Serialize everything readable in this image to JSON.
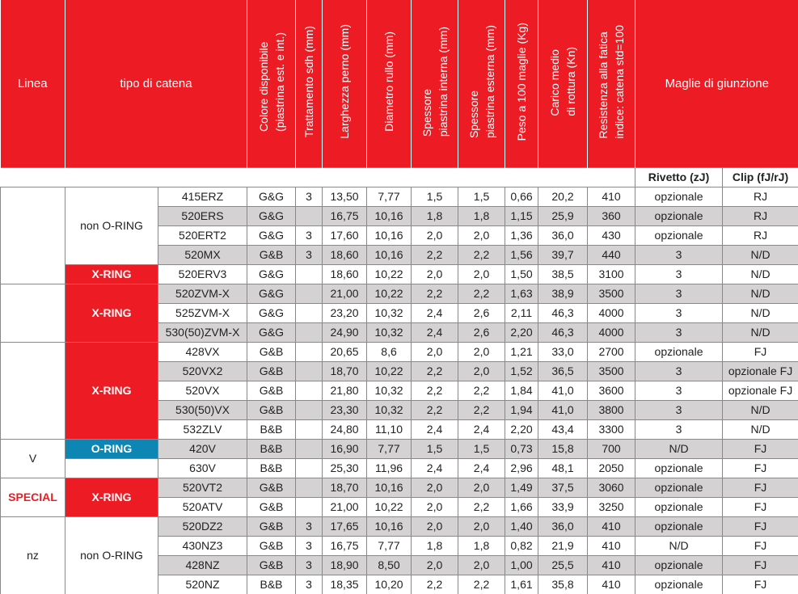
{
  "table": {
    "headers": [
      "Linea",
      "tipo di catena",
      "Colore disponibile\n(piastrina est. e int.)",
      "Trattamento sdh (mm)",
      "Larghezza perno (mm)",
      "Diametro rullo (mm)",
      "Spessore\npiastrina interna (mm)",
      "Spessore\npiastrina esterna (mm)",
      "Peso a 100 maglie (Kg)",
      "Carico medio\ndi rottura (Kn)",
      "Resistenza alla fatica\nindice: catena std=100",
      "Maglie di giunzione"
    ],
    "subheaders": [
      "Rivetto (zJ)",
      "Clip (fJ/rJ)"
    ],
    "linea_groups": [
      null,
      null,
      null,
      "V",
      "SPECIAL",
      "nz"
    ],
    "type_groups": [
      "non O-RING",
      "X-RING",
      "X-RING",
      "X-RING",
      "O-RING",
      null,
      "X-RING",
      "non O-RING"
    ],
    "rows": [
      [
        "415ERZ",
        "G&G",
        "3",
        "13,50",
        "7,77",
        "1,5",
        "1,5",
        "0,66",
        "20,2",
        "410",
        "opzionale",
        "RJ"
      ],
      [
        "520ERS",
        "G&G",
        null,
        "16,75",
        "10,16",
        "1,8",
        "1,8",
        "1,15",
        "25,9",
        "360",
        "opzionale",
        "RJ"
      ],
      [
        "520ERT2",
        "G&G",
        "3",
        "17,60",
        "10,16",
        "2,0",
        "2,0",
        "1,36",
        "36,0",
        "430",
        "opzionale",
        "RJ"
      ],
      [
        "520MX",
        "G&B",
        "3",
        "18,60",
        "10,16",
        "2,2",
        "2,2",
        "1,56",
        "39,7",
        "440",
        "3",
        "N/D"
      ],
      [
        "520ERV3",
        "G&G",
        null,
        "18,60",
        "10,22",
        "2,0",
        "2,0",
        "1,50",
        "38,5",
        "3100",
        "3",
        "N/D"
      ],
      [
        "520ZVM-X",
        "G&G",
        null,
        "21,00",
        "10,22",
        "2,2",
        "2,2",
        "1,63",
        "38,9",
        "3500",
        "3",
        "N/D"
      ],
      [
        "525ZVM-X",
        "G&G",
        null,
        "23,20",
        "10,32",
        "2,4",
        "2,6",
        "2,11",
        "46,3",
        "4000",
        "3",
        "N/D"
      ],
      [
        "530(50)ZVM-X",
        "G&G",
        null,
        "24,90",
        "10,32",
        "2,4",
        "2,6",
        "2,20",
        "46,3",
        "4000",
        "3",
        "N/D"
      ],
      [
        "428VX",
        "G&B",
        null,
        "20,65",
        "8,6",
        "2,0",
        "2,0",
        "1,21",
        "33,0",
        "2700",
        "opzionale",
        "FJ"
      ],
      [
        "520VX2",
        "G&B",
        null,
        "18,70",
        "10,22",
        "2,2",
        "2,0",
        "1,52",
        "36,5",
        "3500",
        "3",
        "opzionale FJ"
      ],
      [
        "520VX",
        "G&B",
        null,
        "21,80",
        "10,32",
        "2,2",
        "2,2",
        "1,84",
        "41,0",
        "3600",
        "3",
        "opzionale FJ"
      ],
      [
        "530(50)VX",
        "G&B",
        null,
        "23,30",
        "10,32",
        "2,2",
        "2,2",
        "1,94",
        "41,0",
        "3800",
        "3",
        "N/D"
      ],
      [
        "532ZLV",
        "B&B",
        null,
        "24,80",
        "11,10",
        "2,4",
        "2,4",
        "2,20",
        "43,4",
        "3300",
        "3",
        "N/D"
      ],
      [
        "420V",
        "B&B",
        null,
        "16,90",
        "7,77",
        "1,5",
        "1,5",
        "0,73",
        "15,8",
        "700",
        "N/D",
        "FJ"
      ],
      [
        "630V",
        "B&B",
        null,
        "25,30",
        "11,96",
        "2,4",
        "2,4",
        "2,96",
        "48,1",
        "2050",
        "opzionale",
        "FJ"
      ],
      [
        "520VT2",
        "G&B",
        null,
        "18,70",
        "10,16",
        "2,0",
        "2,0",
        "1,49",
        "37,5",
        "3060",
        "opzionale",
        "FJ"
      ],
      [
        "520ATV",
        "G&B",
        null,
        "21,00",
        "10,22",
        "2,0",
        "2,2",
        "1,66",
        "33,9",
        "3250",
        "opzionale",
        "FJ"
      ],
      [
        "520DZ2",
        "G&B",
        "3",
        "17,65",
        "10,16",
        "2,0",
        "2,0",
        "1,40",
        "36,0",
        "410",
        "opzionale",
        "FJ"
      ],
      [
        "430NZ3",
        "G&B",
        "3",
        "16,75",
        "7,77",
        "1,8",
        "1,8",
        "0,82",
        "21,9",
        "410",
        "N/D",
        "FJ"
      ],
      [
        "428NZ",
        "G&B",
        "3",
        "18,90",
        "8,50",
        "2,0",
        "2,0",
        "1,00",
        "25,5",
        "410",
        "opzionale",
        "FJ"
      ],
      [
        "520NZ",
        "B&B",
        "3",
        "18,35",
        "10,20",
        "2,2",
        "2,2",
        "1,61",
        "35,8",
        "410",
        "opzionale",
        "FJ"
      ]
    ]
  }
}
